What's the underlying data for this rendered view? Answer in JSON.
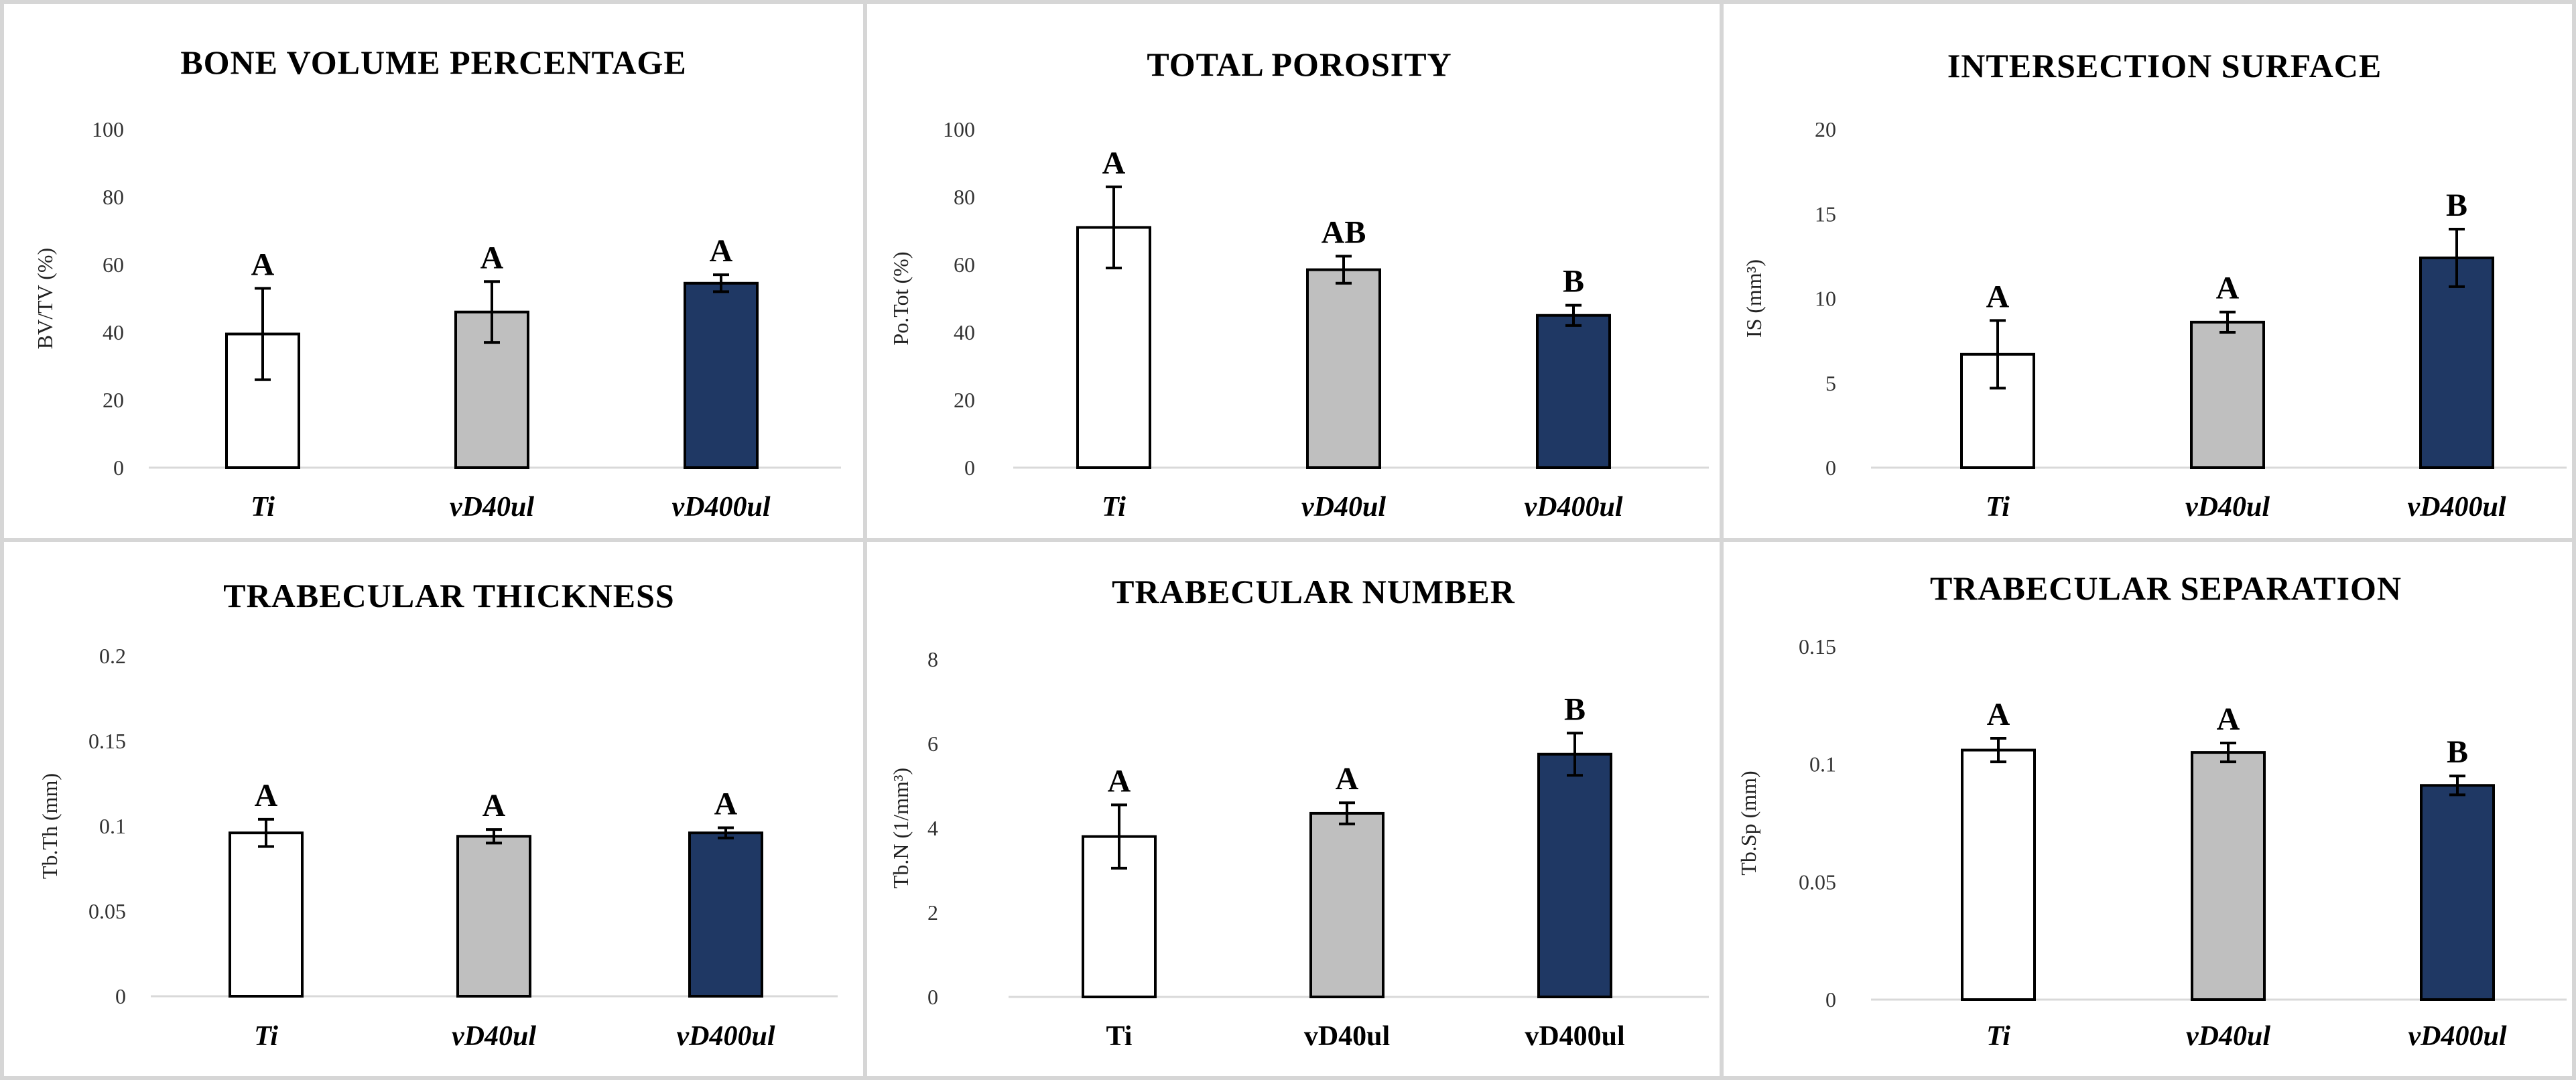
{
  "categories": [
    "Ti",
    "vD40ul",
    "vD400ul"
  ],
  "bar_colors": [
    "#ffffff",
    "#bfbfbf",
    "#1f3864"
  ],
  "chart_data": [
    {
      "type": "bar",
      "title": "BONE VOLUME PERCENTAGE",
      "ylabel": "BV/TV (%)",
      "categories": [
        "Ti",
        "vD40ul",
        "vD400ul"
      ],
      "italic_categories": true,
      "values": [
        39.5,
        46,
        54.5
      ],
      "errors": [
        13.5,
        9,
        2.5
      ],
      "significance": [
        "A",
        "A",
        "A"
      ],
      "ylim": [
        0,
        100
      ],
      "yticks": [
        "0",
        "20",
        "40",
        "60",
        "80",
        "100"
      ]
    },
    {
      "type": "bar",
      "title": "TOTAL POROSITY",
      "ylabel": "Po.Tot (%)",
      "categories": [
        "Ti",
        "vD40ul",
        "vD400ul"
      ],
      "italic_categories": true,
      "values": [
        71,
        58.5,
        45
      ],
      "errors": [
        12,
        4,
        3
      ],
      "significance": [
        "A",
        "AB",
        "B"
      ],
      "ylim": [
        0,
        100
      ],
      "yticks": [
        "0",
        "20",
        "40",
        "60",
        "80",
        "100"
      ]
    },
    {
      "type": "bar",
      "title": "INTERSECTION SURFACE",
      "ylabel": "IS (mm³)",
      "categories": [
        "Ti",
        "vD40ul",
        "vD400ul"
      ],
      "italic_categories": true,
      "values": [
        6.7,
        8.6,
        12.4
      ],
      "errors": [
        2.0,
        0.6,
        1.7
      ],
      "significance": [
        "A",
        "A",
        "B"
      ],
      "ylim": [
        0,
        20
      ],
      "yticks": [
        "0",
        "5",
        "10",
        "15",
        "20"
      ]
    },
    {
      "type": "bar",
      "title": "TRABECULAR THICKNESS",
      "ylabel": "Tb.Th (mm)",
      "categories": [
        "Ti",
        "vD40ul",
        "vD400ul"
      ],
      "italic_categories": true,
      "values": [
        0.096,
        0.094,
        0.096
      ],
      "errors": [
        0.008,
        0.004,
        0.003
      ],
      "significance": [
        "A",
        "A",
        "A"
      ],
      "ylim": [
        0,
        0.2
      ],
      "yticks": [
        "0",
        "0.05",
        "0.1",
        "0.15",
        "0.2"
      ]
    },
    {
      "type": "bar",
      "title": "TRABECULAR NUMBER",
      "ylabel": "Tb.N (1/mm³)",
      "categories": [
        "Ti",
        "vD40ul",
        "vD400ul"
      ],
      "italic_categories": false,
      "values": [
        3.8,
        4.35,
        5.75
      ],
      "errors": [
        0.75,
        0.25,
        0.5
      ],
      "significance": [
        "A",
        "A",
        "B"
      ],
      "ylim": [
        0,
        8
      ],
      "yticks": [
        "0",
        "2",
        "4",
        "6",
        "8"
      ]
    },
    {
      "type": "bar",
      "title": "TRABECULAR SEPARATION",
      "ylabel": "Tb.Sp (mm)",
      "categories": [
        "Ti",
        "vD40ul",
        "vD400ul"
      ],
      "italic_categories": true,
      "values": [
        0.106,
        0.105,
        0.091
      ],
      "errors": [
        0.005,
        0.004,
        0.004
      ],
      "significance": [
        "A",
        "A",
        "B"
      ],
      "ylim": [
        0,
        0.15
      ],
      "yticks": [
        "0",
        "0.05",
        "0.1",
        "0.15"
      ]
    }
  ]
}
